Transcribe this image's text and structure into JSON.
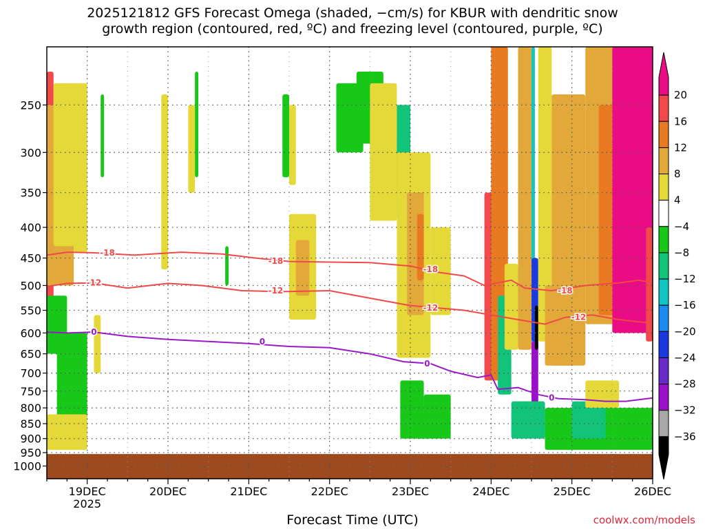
{
  "title_lines": [
    "2025121812 GFS Forecast Omega (shaded, −cm/s) for KBUR with dendritic snow",
    "growth region (contoured, red, ºC) and freezing level (contoured, purple, ºC)"
  ],
  "credit": "coolwx.com/models",
  "chart_data": {
    "type": "heatmap",
    "title": "2025121812 GFS Forecast Omega (shaded, −cm/s) for KBUR with dendritic snow growth region (contoured, red, ºC) and freezing level (contoured, purple, ºC)",
    "xlabel": "Forecast Time (UTC)",
    "ylabel": "",
    "x_range_hours": [
      0,
      180
    ],
    "x_ticks": [
      {
        "hour": 12,
        "label": "19DEC",
        "sub": "2025"
      },
      {
        "hour": 36,
        "label": "20DEC",
        "sub": ""
      },
      {
        "hour": 60,
        "label": "21DEC",
        "sub": ""
      },
      {
        "hour": 84,
        "label": "22DEC",
        "sub": ""
      },
      {
        "hour": 108,
        "label": "23DEC",
        "sub": ""
      },
      {
        "hour": 132,
        "label": "24DEC",
        "sub": ""
      },
      {
        "hour": 156,
        "label": "25DEC",
        "sub": ""
      },
      {
        "hour": 180,
        "label": "26DEC",
        "sub": ""
      }
    ],
    "y_scale": "log-pressure",
    "y_range_hpa": [
      1050,
      200
    ],
    "y_ticks": [
      250,
      300,
      350,
      400,
      450,
      500,
      550,
      600,
      650,
      700,
      750,
      800,
      850,
      900,
      950,
      1000
    ],
    "grid": true,
    "ground_level_hpa": 955,
    "colorbar": {
      "labels": [
        "20",
        "16",
        "12",
        "8",
        "4",
        "−4",
        "−8",
        "−12",
        "−16",
        "−20",
        "−24",
        "−28",
        "−32",
        "−36"
      ],
      "bands": [
        {
          "from": 20,
          "to": 24,
          "color": "#ea0c84"
        },
        {
          "from": 16,
          "to": 20,
          "color": "#f24a4a"
        },
        {
          "from": 12,
          "to": 16,
          "color": "#e87a22"
        },
        {
          "from": 8,
          "to": 12,
          "color": "#e2a83a"
        },
        {
          "from": 4,
          "to": 8,
          "color": "#e5d93a"
        },
        {
          "from": -4,
          "to": 4,
          "color": "#ffffff"
        },
        {
          "from": -8,
          "to": -4,
          "color": "#18c818"
        },
        {
          "from": -12,
          "to": -8,
          "color": "#12c47a"
        },
        {
          "from": -16,
          "to": -12,
          "color": "#10c4c4"
        },
        {
          "from": -20,
          "to": -16,
          "color": "#1a8cf0"
        },
        {
          "from": -24,
          "to": -20,
          "color": "#1a3ae0"
        },
        {
          "from": -28,
          "to": -24,
          "color": "#6a2ac8"
        },
        {
          "from": -32,
          "to": -28,
          "color": "#9a10c8"
        },
        {
          "from": -36,
          "to": -32,
          "color": "#a8a8a8"
        },
        {
          "from": -40,
          "to": -36,
          "color": "#000000"
        }
      ]
    },
    "colors": {
      "ground": "#9c4a1e",
      "isotherm_dgz": "#f04848",
      "isotherm_freezing": "#9a18c8",
      "grid": "#888888"
    },
    "omega_features": [
      {
        "hours": [
          0,
          2
        ],
        "hpa": [
          220,
          560
        ],
        "value": 17
      },
      {
        "hours": [
          0,
          8
        ],
        "hpa": [
          250,
          500
        ],
        "value": 10
      },
      {
        "hours": [
          2,
          12
        ],
        "hpa": [
          230,
          430
        ],
        "value": 6
      },
      {
        "hours": [
          0,
          6
        ],
        "hpa": [
          520,
          650
        ],
        "value": -6
      },
      {
        "hours": [
          3,
          12
        ],
        "hpa": [
          600,
          880
        ],
        "value": -6
      },
      {
        "hours": [
          8,
          12
        ],
        "hpa": [
          230,
          440
        ],
        "value": 5
      },
      {
        "hours": [
          0,
          12
        ],
        "hpa": [
          820,
          940
        ],
        "value": 6
      },
      {
        "hours": [
          14,
          16
        ],
        "hpa": [
          560,
          700
        ],
        "value": 5
      },
      {
        "hours": [
          16,
          17
        ],
        "hpa": [
          240,
          330
        ],
        "value": -6
      },
      {
        "hours": [
          34,
          36
        ],
        "hpa": [
          240,
          470
        ],
        "value": 5
      },
      {
        "hours": [
          42,
          44
        ],
        "hpa": [
          250,
          350
        ],
        "value": 5
      },
      {
        "hours": [
          44,
          45
        ],
        "hpa": [
          220,
          330
        ],
        "value": -6
      },
      {
        "hours": [
          53,
          54
        ],
        "hpa": [
          430,
          500
        ],
        "value": -6
      },
      {
        "hours": [
          72,
          74
        ],
        "hpa": [
          250,
          340
        ],
        "value": 5
      },
      {
        "hours": [
          72,
          80
        ],
        "hpa": [
          380,
          570
        ],
        "value": 5
      },
      {
        "hours": [
          74,
          78
        ],
        "hpa": [
          420,
          520
        ],
        "value": 9
      },
      {
        "hours": [
          70,
          72
        ],
        "hpa": [
          240,
          330
        ],
        "value": -6
      },
      {
        "hours": [
          86,
          94
        ],
        "hpa": [
          230,
          300
        ],
        "value": -6
      },
      {
        "hours": [
          92,
          100
        ],
        "hpa": [
          220,
          290
        ],
        "value": -7
      },
      {
        "hours": [
          98,
          108
        ],
        "hpa": [
          250,
          380
        ],
        "value": -10
      },
      {
        "hours": [
          102,
          104
        ],
        "hpa": [
          280,
          340
        ],
        "value": -18
      },
      {
        "hours": [
          96,
          104
        ],
        "hpa": [
          230,
          390
        ],
        "value": 5
      },
      {
        "hours": [
          104,
          114
        ],
        "hpa": [
          300,
          660
        ],
        "value": 5
      },
      {
        "hours": [
          107,
          112
        ],
        "hpa": [
          350,
          560
        ],
        "value": 10
      },
      {
        "hours": [
          110,
          112
        ],
        "hpa": [
          380,
          490
        ],
        "value": 14
      },
      {
        "hours": [
          114,
          120
        ],
        "hpa": [
          400,
          560
        ],
        "value": 5
      },
      {
        "hours": [
          105,
          112
        ],
        "hpa": [
          720,
          900
        ],
        "value": -6
      },
      {
        "hours": [
          110,
          114
        ],
        "hpa": [
          820,
          900
        ],
        "value": -6
      },
      {
        "hours": [
          112,
          120
        ],
        "hpa": [
          760,
          900
        ],
        "value": -7
      },
      {
        "hours": [
          130,
          134
        ],
        "hpa": [
          350,
          720
        ],
        "value": 18
      },
      {
        "hours": [
          132,
          137
        ],
        "hpa": [
          200,
          720
        ],
        "value": 13
      },
      {
        "hours": [
          134,
          138
        ],
        "hpa": [
          520,
          760
        ],
        "value": -10
      },
      {
        "hours": [
          136,
          140
        ],
        "hpa": [
          460,
          640
        ],
        "value": 5
      },
      {
        "hours": [
          140,
          144
        ],
        "hpa": [
          200,
          640
        ],
        "value": 8
      },
      {
        "hours": [
          144,
          145
        ],
        "hpa": [
          200,
          640
        ],
        "value": -14
      },
      {
        "hours": [
          144,
          146
        ],
        "hpa": [
          450,
          620
        ],
        "value": -22
      },
      {
        "hours": [
          144,
          146
        ],
        "hpa": [
          620,
          800
        ],
        "value": -30
      },
      {
        "hours": [
          145,
          146
        ],
        "hpa": [
          540,
          640
        ],
        "value": -37
      },
      {
        "hours": [
          144,
          146
        ],
        "hpa": [
          780,
          880
        ],
        "value": -37
      },
      {
        "hours": [
          138,
          148
        ],
        "hpa": [
          780,
          900
        ],
        "value": -12
      },
      {
        "hours": [
          146,
          150
        ],
        "hpa": [
          200,
          620
        ],
        "value": 6
      },
      {
        "hours": [
          148,
          156
        ],
        "hpa": [
          500,
          680
        ],
        "value": 10
      },
      {
        "hours": [
          150,
          160
        ],
        "hpa": [
          240,
          680
        ],
        "value": 8
      },
      {
        "hours": [
          148,
          180
        ],
        "hpa": [
          800,
          940
        ],
        "value": -6
      },
      {
        "hours": [
          156,
          166
        ],
        "hpa": [
          780,
          900
        ],
        "value": -10
      },
      {
        "hours": [
          160,
          170
        ],
        "hpa": [
          720,
          800
        ],
        "value": 6
      },
      {
        "hours": [
          160,
          170
        ],
        "hpa": [
          200,
          580
        ],
        "value": 10
      },
      {
        "hours": [
          164,
          172
        ],
        "hpa": [
          250,
          560
        ],
        "value": 14
      },
      {
        "hours": [
          168,
          180
        ],
        "hpa": [
          200,
          600
        ],
        "value": 22
      },
      {
        "hours": [
          178,
          180
        ],
        "hpa": [
          400,
          620
        ],
        "value": 16
      }
    ],
    "isotherms": [
      {
        "value": -18,
        "label": "-18",
        "color": "#f04848",
        "points": [
          [
            0,
            445
          ],
          [
            6,
            440
          ],
          [
            14,
            441
          ],
          [
            26,
            445
          ],
          [
            40,
            440
          ],
          [
            52,
            443
          ],
          [
            62,
            450
          ],
          [
            72,
            456
          ],
          [
            84,
            457
          ],
          [
            96,
            458
          ],
          [
            108,
            464
          ],
          [
            116,
            475
          ],
          [
            124,
            482
          ],
          [
            130,
            500
          ],
          [
            138,
            490
          ],
          [
            142,
            505
          ],
          [
            150,
            510
          ],
          [
            160,
            500
          ],
          [
            170,
            495
          ],
          [
            176,
            490
          ],
          [
            180,
            495
          ]
        ],
        "label_points": [
          [
            18,
            441
          ],
          [
            68,
            455
          ],
          [
            114,
            470
          ],
          [
            154,
            510
          ]
        ]
      },
      {
        "value": -12,
        "label": "-12",
        "color": "#f04848",
        "points": [
          [
            0,
            502
          ],
          [
            6,
            496
          ],
          [
            14,
            495
          ],
          [
            24,
            505
          ],
          [
            36,
            496
          ],
          [
            46,
            500
          ],
          [
            58,
            510
          ],
          [
            70,
            512
          ],
          [
            84,
            510
          ],
          [
            96,
            525
          ],
          [
            108,
            540
          ],
          [
            116,
            545
          ],
          [
            124,
            550
          ],
          [
            132,
            560
          ],
          [
            140,
            570
          ],
          [
            148,
            580
          ],
          [
            154,
            565
          ],
          [
            162,
            560
          ],
          [
            170,
            570
          ],
          [
            176,
            575
          ],
          [
            180,
            578
          ]
        ],
        "label_points": [
          [
            14,
            495
          ],
          [
            68,
            510
          ],
          [
            114,
            545
          ],
          [
            158,
            565
          ]
        ]
      },
      {
        "value": 0,
        "label": "0",
        "color": "#9a18c8",
        "points": [
          [
            0,
            598
          ],
          [
            6,
            600
          ],
          [
            14,
            598
          ],
          [
            24,
            608
          ],
          [
            36,
            615
          ],
          [
            48,
            620
          ],
          [
            60,
            625
          ],
          [
            72,
            632
          ],
          [
            84,
            635
          ],
          [
            96,
            650
          ],
          [
            106,
            670
          ],
          [
            114,
            675
          ],
          [
            120,
            695
          ],
          [
            128,
            712
          ],
          [
            132,
            705
          ],
          [
            134,
            745
          ],
          [
            140,
            740
          ],
          [
            146,
            760
          ],
          [
            152,
            772
          ],
          [
            160,
            775
          ],
          [
            166,
            780
          ],
          [
            172,
            780
          ],
          [
            180,
            770
          ]
        ],
        "label_points": [
          [
            14,
            598
          ],
          [
            64,
            620
          ],
          [
            113,
            675
          ],
          [
            150,
            770
          ]
        ]
      }
    ]
  }
}
